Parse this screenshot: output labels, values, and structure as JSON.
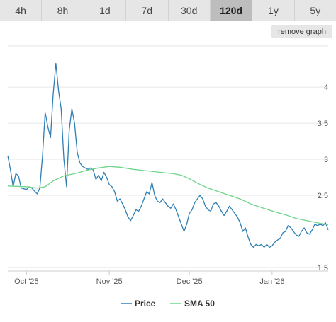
{
  "tabs": [
    {
      "label": "4h",
      "active": false
    },
    {
      "label": "8h",
      "active": false
    },
    {
      "label": "1d",
      "active": false
    },
    {
      "label": "7d",
      "active": false
    },
    {
      "label": "30d",
      "active": false
    },
    {
      "label": "120d",
      "active": true
    },
    {
      "label": "1y",
      "active": false
    },
    {
      "label": "5y",
      "active": false
    }
  ],
  "remove_graph_label": "remove graph",
  "colors": {
    "price": "#2f7fb5",
    "sma": "#6ed68a",
    "grid": "#e6e6e6",
    "axis": "#cccccc"
  },
  "chart_data": {
    "type": "line",
    "x_unit": "date",
    "x_range": [
      "2025-09-24",
      "2026-01-22"
    ],
    "x_ticks": [
      {
        "date": "2025-10-01",
        "label": "Oct '25"
      },
      {
        "date": "2025-11-01",
        "label": "Nov '25"
      },
      {
        "date": "2025-12-01",
        "label": "Dec '25"
      },
      {
        "date": "2026-01-01",
        "label": "Jan '26"
      }
    ],
    "y_ticks": [
      1.5,
      2.5,
      3,
      3.5,
      4
    ],
    "ylim": [
      1.45,
      4.6
    ],
    "y_axis_position": "right",
    "grid": "horizontal",
    "legend": "bottom-center",
    "series": [
      {
        "name": "Price",
        "points": [
          [
            "2025-09-24",
            3.05
          ],
          [
            "2025-09-25",
            2.85
          ],
          [
            "2025-09-26",
            2.62
          ],
          [
            "2025-09-27",
            2.8
          ],
          [
            "2025-09-28",
            2.77
          ],
          [
            "2025-09-29",
            2.6
          ],
          [
            "2025-09-30",
            2.59
          ],
          [
            "2025-10-01",
            2.58
          ],
          [
            "2025-10-02",
            2.62
          ],
          [
            "2025-10-03",
            2.6
          ],
          [
            "2025-10-04",
            2.56
          ],
          [
            "2025-10-05",
            2.52
          ],
          [
            "2025-10-06",
            2.6
          ],
          [
            "2025-10-07",
            3.05
          ],
          [
            "2025-10-08",
            3.65
          ],
          [
            "2025-10-09",
            3.45
          ],
          [
            "2025-10-10",
            3.3
          ],
          [
            "2025-10-11",
            3.9
          ],
          [
            "2025-10-12",
            4.33
          ],
          [
            "2025-10-13",
            3.95
          ],
          [
            "2025-10-14",
            3.7
          ],
          [
            "2025-10-15",
            3.0
          ],
          [
            "2025-10-16",
            2.62
          ],
          [
            "2025-10-17",
            3.4
          ],
          [
            "2025-10-18",
            3.7
          ],
          [
            "2025-10-19",
            3.5
          ],
          [
            "2025-10-20",
            3.1
          ],
          [
            "2025-10-21",
            2.95
          ],
          [
            "2025-10-22",
            2.9
          ],
          [
            "2025-10-23",
            2.88
          ],
          [
            "2025-10-24",
            2.86
          ],
          [
            "2025-10-25",
            2.88
          ],
          [
            "2025-10-26",
            2.85
          ],
          [
            "2025-10-27",
            2.72
          ],
          [
            "2025-10-28",
            2.78
          ],
          [
            "2025-10-29",
            2.7
          ],
          [
            "2025-10-30",
            2.82
          ],
          [
            "2025-10-31",
            2.75
          ],
          [
            "2025-11-01",
            2.65
          ],
          [
            "2025-11-02",
            2.62
          ],
          [
            "2025-11-03",
            2.55
          ],
          [
            "2025-11-04",
            2.42
          ],
          [
            "2025-11-05",
            2.45
          ],
          [
            "2025-11-06",
            2.38
          ],
          [
            "2025-11-07",
            2.3
          ],
          [
            "2025-11-08",
            2.2
          ],
          [
            "2025-11-09",
            2.15
          ],
          [
            "2025-11-10",
            2.22
          ],
          [
            "2025-11-11",
            2.3
          ],
          [
            "2025-11-12",
            2.28
          ],
          [
            "2025-11-13",
            2.35
          ],
          [
            "2025-11-14",
            2.45
          ],
          [
            "2025-11-15",
            2.55
          ],
          [
            "2025-11-16",
            2.52
          ],
          [
            "2025-11-17",
            2.68
          ],
          [
            "2025-11-18",
            2.5
          ],
          [
            "2025-11-19",
            2.42
          ],
          [
            "2025-11-20",
            2.4
          ],
          [
            "2025-11-21",
            2.45
          ],
          [
            "2025-11-22",
            2.4
          ],
          [
            "2025-11-23",
            2.35
          ],
          [
            "2025-11-24",
            2.32
          ],
          [
            "2025-11-25",
            2.38
          ],
          [
            "2025-11-26",
            2.3
          ],
          [
            "2025-11-27",
            2.2
          ],
          [
            "2025-11-28",
            2.1
          ],
          [
            "2025-11-29",
            2.0
          ],
          [
            "2025-11-30",
            2.1
          ],
          [
            "2025-12-01",
            2.25
          ],
          [
            "2025-12-02",
            2.3
          ],
          [
            "2025-12-03",
            2.4
          ],
          [
            "2025-12-04",
            2.45
          ],
          [
            "2025-12-05",
            2.5
          ],
          [
            "2025-12-06",
            2.45
          ],
          [
            "2025-12-07",
            2.35
          ],
          [
            "2025-12-08",
            2.3
          ],
          [
            "2025-12-09",
            2.28
          ],
          [
            "2025-12-10",
            2.38
          ],
          [
            "2025-12-11",
            2.4
          ],
          [
            "2025-12-12",
            2.35
          ],
          [
            "2025-12-13",
            2.28
          ],
          [
            "2025-12-14",
            2.22
          ],
          [
            "2025-12-15",
            2.28
          ],
          [
            "2025-12-16",
            2.35
          ],
          [
            "2025-12-17",
            2.3
          ],
          [
            "2025-12-18",
            2.25
          ],
          [
            "2025-12-19",
            2.2
          ],
          [
            "2025-12-20",
            2.12
          ],
          [
            "2025-12-21",
            2.0
          ],
          [
            "2025-12-22",
            2.05
          ],
          [
            "2025-12-23",
            1.92
          ],
          [
            "2025-12-24",
            1.82
          ],
          [
            "2025-12-25",
            1.78
          ],
          [
            "2025-12-26",
            1.82
          ],
          [
            "2025-12-27",
            1.8
          ],
          [
            "2025-12-28",
            1.82
          ],
          [
            "2025-12-29",
            1.78
          ],
          [
            "2025-12-30",
            1.82
          ],
          [
            "2025-12-31",
            1.78
          ],
          [
            "2026-01-01",
            1.8
          ],
          [
            "2026-01-02",
            1.85
          ],
          [
            "2026-01-03",
            1.88
          ],
          [
            "2026-01-04",
            1.9
          ],
          [
            "2026-01-05",
            1.98
          ],
          [
            "2026-01-06",
            2.0
          ],
          [
            "2026-01-07",
            2.08
          ],
          [
            "2026-01-08",
            2.05
          ],
          [
            "2026-01-09",
            2.0
          ],
          [
            "2026-01-10",
            1.95
          ],
          [
            "2026-01-11",
            1.93
          ],
          [
            "2026-01-12",
            2.0
          ],
          [
            "2026-01-13",
            2.05
          ],
          [
            "2026-01-14",
            1.98
          ],
          [
            "2026-01-15",
            1.96
          ],
          [
            "2026-01-16",
            2.02
          ],
          [
            "2026-01-17",
            2.1
          ],
          [
            "2026-01-18",
            2.08
          ],
          [
            "2026-01-19",
            2.1
          ],
          [
            "2026-01-20",
            2.08
          ],
          [
            "2026-01-21",
            2.12
          ],
          [
            "2026-01-22",
            2.02
          ]
        ]
      },
      {
        "name": "SMA 50",
        "points": [
          [
            "2025-09-24",
            2.63
          ],
          [
            "2025-10-01",
            2.62
          ],
          [
            "2025-10-05",
            2.6
          ],
          [
            "2025-10-08",
            2.62
          ],
          [
            "2025-10-11",
            2.7
          ],
          [
            "2025-10-15",
            2.77
          ],
          [
            "2025-10-19",
            2.8
          ],
          [
            "2025-10-24",
            2.85
          ],
          [
            "2025-10-28",
            2.88
          ],
          [
            "2025-11-01",
            2.9
          ],
          [
            "2025-11-05",
            2.89
          ],
          [
            "2025-11-10",
            2.86
          ],
          [
            "2025-11-15",
            2.84
          ],
          [
            "2025-11-20",
            2.82
          ],
          [
            "2025-11-25",
            2.8
          ],
          [
            "2025-11-28",
            2.78
          ],
          [
            "2025-12-01",
            2.73
          ],
          [
            "2025-12-04",
            2.67
          ],
          [
            "2025-12-08",
            2.6
          ],
          [
            "2025-12-12",
            2.55
          ],
          [
            "2025-12-16",
            2.5
          ],
          [
            "2025-12-20",
            2.45
          ],
          [
            "2025-12-24",
            2.38
          ],
          [
            "2025-12-28",
            2.33
          ],
          [
            "2026-01-02",
            2.27
          ],
          [
            "2026-01-06",
            2.23
          ],
          [
            "2026-01-10",
            2.18
          ],
          [
            "2026-01-14",
            2.15
          ],
          [
            "2026-01-18",
            2.12
          ],
          [
            "2026-01-22",
            2.09
          ]
        ]
      }
    ]
  }
}
